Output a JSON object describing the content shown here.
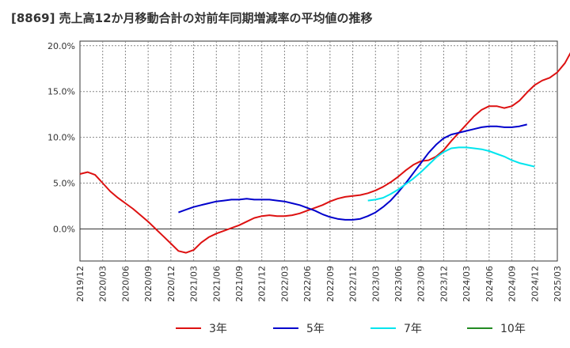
{
  "title": "[8869]  売上高12か月移動合計の対前年同期増減率の平均値の推移",
  "chart_data": {
    "type": "line",
    "title": "[8869]  売上高12か月移動合計の対前年同期増減率の平均値の推移",
    "xlabel": "",
    "ylabel": "",
    "ylim": [
      -3.5,
      20.5
    ],
    "xlim": [
      "2019/12",
      "2025/03"
    ],
    "yticks": [
      0,
      5,
      10,
      15,
      20
    ],
    "ytick_labels": [
      "0.0%",
      "5.0%",
      "10.0%",
      "15.0%",
      "20.0%"
    ],
    "xtick_labels": [
      "2019/12",
      "2020/03",
      "2020/06",
      "2020/09",
      "2020/12",
      "2021/03",
      "2021/06",
      "2021/09",
      "2021/12",
      "2022/03",
      "2022/06",
      "2022/09",
      "2022/12",
      "2023/03",
      "2023/06",
      "2023/09",
      "2023/12",
      "2024/03",
      "2024/06",
      "2024/09",
      "2024/12",
      "2025/03"
    ],
    "grid": true,
    "legend_position": "bottom",
    "series": [
      {
        "name": "3年",
        "color": "#dd1111",
        "start": "2019/12",
        "values": [
          6.0,
          6.2,
          5.9,
          5.0,
          4.1,
          3.4,
          2.8,
          2.2,
          1.5,
          0.8,
          0.0,
          -0.8,
          -1.6,
          -2.4,
          -2.6,
          -2.3,
          -1.5,
          -0.9,
          -0.5,
          -0.2,
          0.1,
          0.4,
          0.8,
          1.2,
          1.4,
          1.5,
          1.4,
          1.4,
          1.5,
          1.7,
          2.0,
          2.3,
          2.6,
          3.0,
          3.3,
          3.5,
          3.6,
          3.7,
          3.9,
          4.2,
          4.6,
          5.1,
          5.7,
          6.4,
          7.0,
          7.4,
          7.5,
          7.9,
          8.6,
          9.6,
          10.5,
          11.4,
          12.3,
          13.0,
          13.4,
          13.4,
          13.2,
          13.4,
          14.0,
          14.9,
          15.7,
          16.2,
          16.5,
          17.1,
          18.1,
          19.6
        ]
      },
      {
        "name": "5年",
        "color": "#0000cc",
        "start": "2021/01",
        "values": [
          1.8,
          2.1,
          2.4,
          2.6,
          2.8,
          3.0,
          3.1,
          3.2,
          3.2,
          3.3,
          3.2,
          3.2,
          3.2,
          3.1,
          3.0,
          2.8,
          2.6,
          2.3,
          2.0,
          1.6,
          1.3,
          1.1,
          1.0,
          1.0,
          1.1,
          1.4,
          1.8,
          2.4,
          3.1,
          4.0,
          5.0,
          6.1,
          7.2,
          8.3,
          9.2,
          9.9,
          10.3,
          10.5,
          10.7,
          10.9,
          11.1,
          11.2,
          11.2,
          11.1,
          11.1,
          11.2,
          11.4
        ]
      },
      {
        "name": "7年",
        "color": "#00e5ee",
        "start": "2023/02",
        "values": [
          3.1,
          3.2,
          3.4,
          3.8,
          4.3,
          4.9,
          5.5,
          6.2,
          7.0,
          7.8,
          8.4,
          8.8,
          8.9,
          8.9,
          8.8,
          8.7,
          8.5,
          8.2,
          7.9,
          7.5,
          7.2,
          7.0,
          6.8
        ]
      },
      {
        "name": "10年",
        "color": "#228b22",
        "start": "2025/01",
        "values": []
      }
    ]
  }
}
